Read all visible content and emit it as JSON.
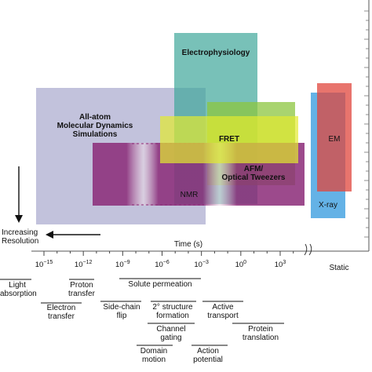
{
  "diagram": {
    "xaxis": {
      "label": "Time (s)",
      "ticks": [
        {
          "base": "10",
          "exp": "−15",
          "log": -15
        },
        {
          "base": "10",
          "exp": "−12",
          "log": -12
        },
        {
          "base": "10",
          "exp": "−9",
          "log": -9
        },
        {
          "base": "10",
          "exp": "−6",
          "log": -6
        },
        {
          "base": "10",
          "exp": "−3",
          "log": -3
        },
        {
          "base": "10",
          "exp": "0",
          "log": 0
        },
        {
          "base": "10",
          "exp": "3",
          "log": 3
        }
      ],
      "static_label": "Static"
    },
    "resolution_label_1": "Increasing",
    "resolution_label_2": "Resolution",
    "methods": [
      {
        "id": "md",
        "lines": [
          "All-atom",
          "Molecular Dynamics",
          "Simulations"
        ],
        "color": "#8f8fbf"
      },
      {
        "id": "ephys",
        "lines": [
          "Electrophysiology"
        ],
        "color": "#3fa79a"
      },
      {
        "id": "fret",
        "lines": [
          "FRET"
        ],
        "color": "#e3ea2f"
      },
      {
        "id": "afm",
        "lines": [
          "AFM/",
          "Optical Tweezers"
        ],
        "color": "#8cc63f"
      },
      {
        "id": "nmr",
        "lines": [
          "NMR"
        ],
        "color": "#8b2a78"
      },
      {
        "id": "em",
        "lines": [
          "EM"
        ],
        "color": "#e0463c"
      },
      {
        "id": "xray",
        "lines": [
          "X-ray"
        ],
        "color": "#3d9fe0"
      }
    ],
    "processes": [
      {
        "id": "light",
        "lines": [
          "Light",
          "absorption"
        ]
      },
      {
        "id": "electron",
        "lines": [
          "Electron",
          "transfer"
        ]
      },
      {
        "id": "proton",
        "lines": [
          "Proton",
          "transfer"
        ]
      },
      {
        "id": "solute",
        "lines": [
          "Solute permeation"
        ]
      },
      {
        "id": "sidechain",
        "lines": [
          "Side-chain",
          "flip"
        ]
      },
      {
        "id": "secondary",
        "lines": [
          "2° structure",
          "formation"
        ]
      },
      {
        "id": "active",
        "lines": [
          "Active",
          "transport"
        ]
      },
      {
        "id": "channel",
        "lines": [
          "Channel",
          "gating"
        ]
      },
      {
        "id": "protein",
        "lines": [
          "Protein",
          "translation"
        ]
      },
      {
        "id": "domain",
        "lines": [
          "Domain",
          "motion"
        ]
      },
      {
        "id": "action",
        "lines": [
          "Action",
          "potential"
        ]
      }
    ]
  }
}
